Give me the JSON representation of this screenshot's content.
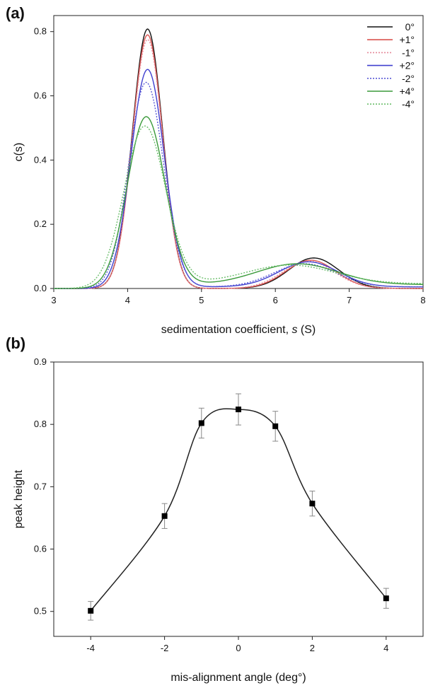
{
  "chart_data": [
    {
      "panel": "(a)",
      "type": "line",
      "xlabel": "sedimentation coefficient, ",
      "xlabel_italic": "s",
      "xlabel_unit": " (S)",
      "ylabel": "c(s)",
      "xlim": [
        3,
        8
      ],
      "ylim": [
        0,
        0.85
      ],
      "xticks": [
        3,
        4,
        5,
        6,
        7,
        8
      ],
      "yticks": [
        0.0,
        0.2,
        0.4,
        0.6,
        0.8
      ],
      "ytick_labels": [
        "0.0",
        "0.2",
        "0.4",
        "0.6",
        "0.8"
      ],
      "grid": false,
      "legend_position": "top-right",
      "series": [
        {
          "name": "0°",
          "color": "#111111",
          "style": "solid",
          "peak1": {
            "mu": 4.27,
            "sd": 0.205,
            "h": 0.808
          },
          "peak2": {
            "mu": 6.52,
            "sd": 0.34,
            "h": 0.095
          },
          "baseline": 0.0
        },
        {
          "name": "+1°",
          "color": "#d9534f",
          "style": "solid",
          "peak1": {
            "mu": 4.27,
            "sd": 0.205,
            "h": 0.79
          },
          "peak2": {
            "mu": 6.48,
            "sd": 0.34,
            "h": 0.088
          },
          "baseline": 0.0
        },
        {
          "name": "-1°",
          "color": "#e58a9a",
          "style": "dotted",
          "peak1": {
            "mu": 4.27,
            "sd": 0.205,
            "h": 0.775
          },
          "peak2": {
            "mu": 6.45,
            "sd": 0.35,
            "h": 0.085
          },
          "baseline": 0.0
        },
        {
          "name": "+2°",
          "color": "#3f3fcf",
          "style": "solid",
          "peak1": {
            "mu": 4.27,
            "sd": 0.225,
            "h": 0.68
          },
          "peak2": {
            "mu": 6.45,
            "sd": 0.4,
            "h": 0.078
          },
          "baseline": 0.005
        },
        {
          "name": "-2°",
          "color": "#5a5ad6",
          "style": "dotted",
          "peak1": {
            "mu": 4.25,
            "sd": 0.235,
            "h": 0.64
          },
          "peak2": {
            "mu": 6.4,
            "sd": 0.42,
            "h": 0.072
          },
          "baseline": 0.005
        },
        {
          "name": "+4°",
          "color": "#3a9a3a",
          "style": "solid",
          "peak1": {
            "mu": 4.25,
            "sd": 0.255,
            "h": 0.53
          },
          "peak2": {
            "mu": 6.3,
            "sd": 0.55,
            "h": 0.065
          },
          "baseline": 0.012
        },
        {
          "name": "-4°",
          "color": "#6cbf6c",
          "style": "dotted",
          "peak1": {
            "mu": 4.23,
            "sd": 0.28,
            "h": 0.5
          },
          "peak2": {
            "mu": 6.2,
            "sd": 0.6,
            "h": 0.058
          },
          "baseline": 0.015
        }
      ]
    },
    {
      "panel": "(b)",
      "type": "scatter",
      "xlabel": "mis-alignment angle (deg°)",
      "ylabel": "peak height",
      "xlim": [
        -5,
        5
      ],
      "ylim": [
        0.46,
        0.9
      ],
      "xticks": [
        -4,
        -2,
        0,
        2,
        4
      ],
      "yticks": [
        0.5,
        0.6,
        0.7,
        0.8,
        0.9
      ],
      "ytick_labels": [
        "0.5",
        "0.6",
        "0.7",
        "0.8",
        "0.9"
      ],
      "grid": false,
      "smooth_line": true,
      "series": [
        {
          "x": [
            -4,
            -2,
            -1,
            0,
            1,
            2,
            4
          ],
          "y": [
            0.501,
            0.653,
            0.802,
            0.824,
            0.797,
            0.673,
            0.521
          ],
          "yerr": [
            0.015,
            0.02,
            0.024,
            0.025,
            0.024,
            0.02,
            0.016
          ]
        }
      ]
    }
  ]
}
